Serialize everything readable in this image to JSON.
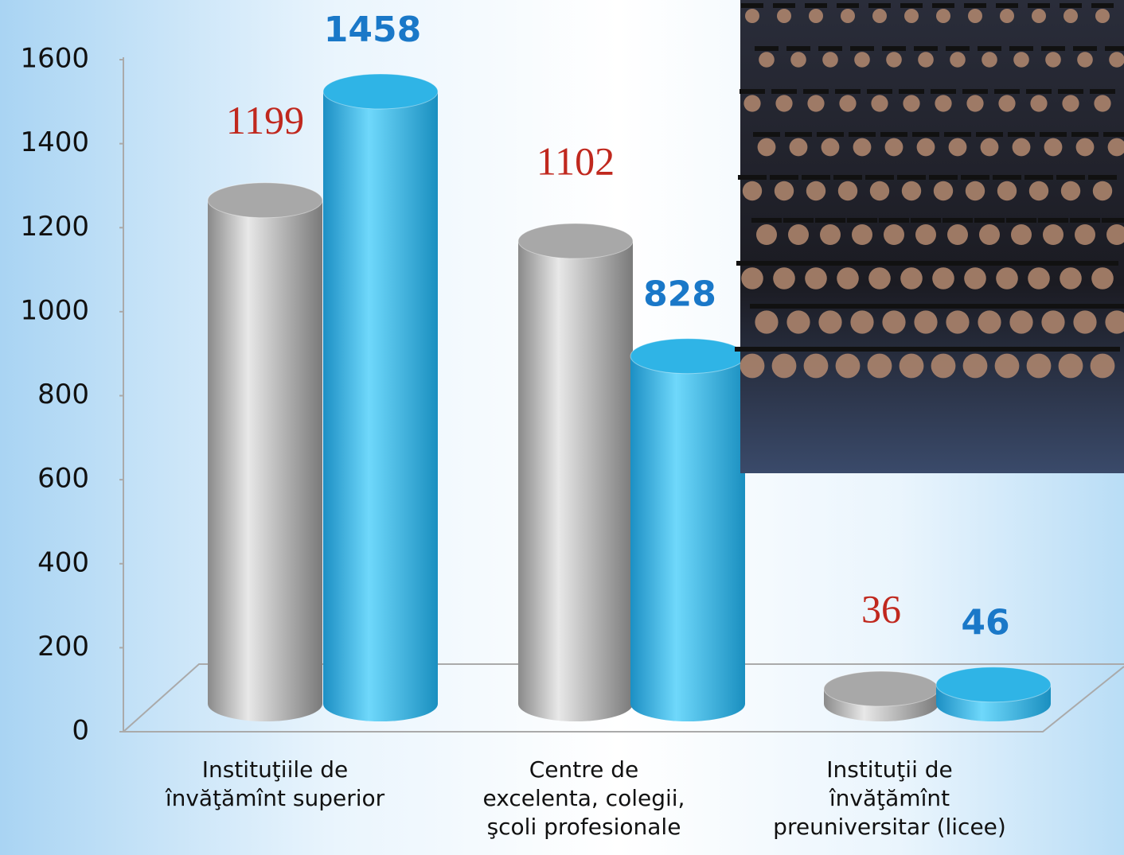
{
  "chart_data": {
    "type": "bar3d",
    "categories": [
      "Instituţiile de\nînvăţămînt superior",
      "Centre de\nexcelenta, colegii,\nşcoli profesionale",
      "Instituţii de\nînvăţămînt\npreuniversitar (licee)"
    ],
    "series": [
      {
        "color": "#a8a8a8",
        "label_color": "#c0281e",
        "values": [
          1199,
          1102,
          36
        ]
      },
      {
        "color": "#2fb4e6",
        "label_color": "#1a78c8",
        "values": [
          1458,
          828,
          46
        ]
      }
    ],
    "ylim": [
      0,
      1600
    ],
    "yticks": [
      0,
      200,
      400,
      600,
      800,
      1000,
      1200,
      1400,
      1600
    ]
  }
}
